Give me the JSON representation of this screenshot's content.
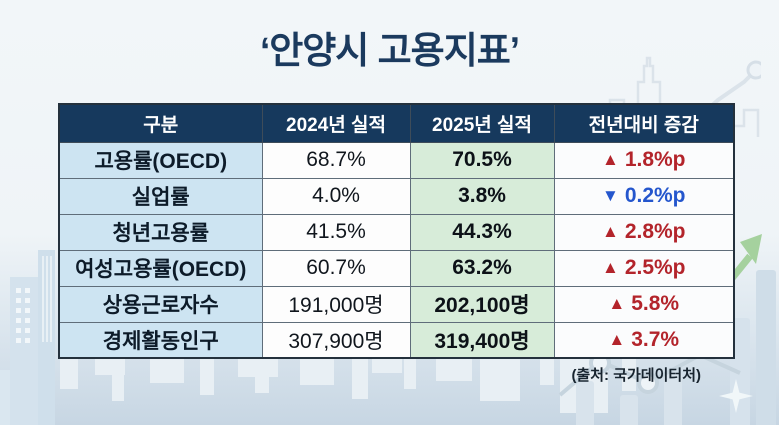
{
  "title": "‘안양시 고용지표’",
  "table": {
    "headers": [
      "구분",
      "2024년 실적",
      "2025년 실적",
      "전년대비 증감"
    ],
    "rows": [
      {
        "label": "고용률(OECD)",
        "y2024": "68.7%",
        "y2025": "70.5%",
        "change": "1.8%p",
        "direction": "up"
      },
      {
        "label": "실업률",
        "y2024": "4.0%",
        "y2025": "3.8%",
        "change": "0.2%p",
        "direction": "down"
      },
      {
        "label": "청년고용률",
        "y2024": "41.5%",
        "y2025": "44.3%",
        "change": "2.8%p",
        "direction": "up"
      },
      {
        "label": "여성고용률(OECD)",
        "y2024": "60.7%",
        "y2025": "63.2%",
        "change": "2.5%p",
        "direction": "up"
      },
      {
        "label": "상용근로자수",
        "y2024": "191,000명",
        "y2025": "202,100명",
        "change": "5.8%",
        "direction": "up"
      },
      {
        "label": "경제활동인구",
        "y2024": "307,900명",
        "y2025": "319,400명",
        "change": "3.7%",
        "direction": "up"
      }
    ]
  },
  "icons": {
    "up": "▲",
    "down": "▼"
  },
  "source": "(출처: 국가데이터처)",
  "colors": {
    "title_navy": "#1b3a5e",
    "header_bg": "#16395d",
    "label_col_bg": "#cde4f2",
    "col2025_bg": "#d7ecd9",
    "increase_red": "#b3242b",
    "decrease_blue": "#2456cd",
    "arrow_green": "#a5d19e"
  },
  "chart_data": {
    "type": "table",
    "title": "안양시 고용지표",
    "columns": [
      "구분",
      "2024년 실적",
      "2025년 실적",
      "전년대비 증감"
    ],
    "rows": [
      [
        "고용률(OECD)",
        "68.7%",
        "70.5%",
        "▲ 1.8%p"
      ],
      [
        "실업률",
        "4.0%",
        "3.8%",
        "▼ 0.2%p"
      ],
      [
        "청년고용률",
        "41.5%",
        "44.3%",
        "▲ 2.8%p"
      ],
      [
        "여성고용률(OECD)",
        "60.7%",
        "63.2%",
        "▲ 2.5%p"
      ],
      [
        "상용근로자수",
        "191,000명",
        "202,100명",
        "▲ 5.8%"
      ],
      [
        "경제활동인구",
        "307,900명",
        "319,400명",
        "▲ 3.7%"
      ]
    ],
    "source": "(출처: 국가데이터처)",
    "notes": "2025 column highlighted green; increases red with up-triangle, decrease blue with down-triangle"
  }
}
